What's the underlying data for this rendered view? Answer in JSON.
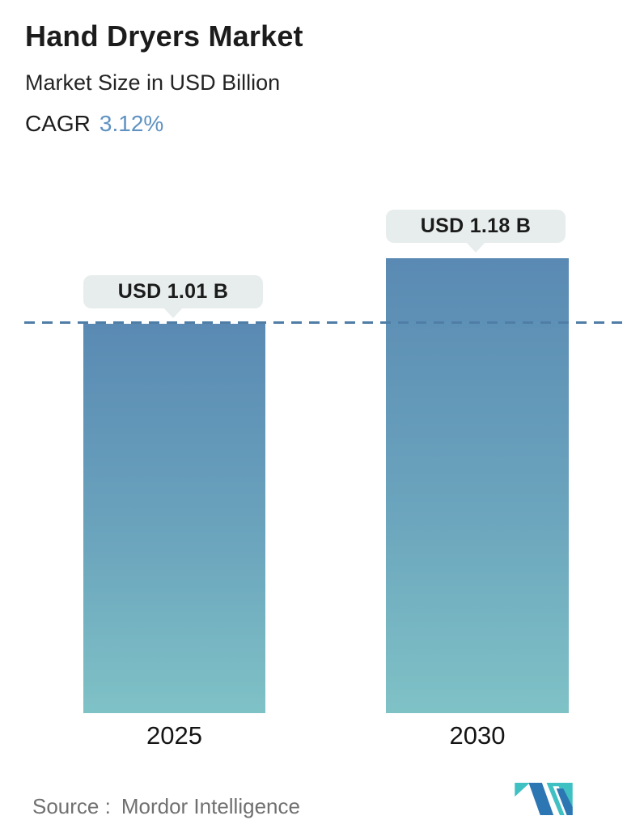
{
  "header": {
    "title": "Hand Dryers Market",
    "subtitle": "Market Size in USD Billion",
    "cagr_label": "CAGR",
    "cagr_value": "3.12%"
  },
  "chart_data": {
    "type": "bar",
    "categories": [
      "2025",
      "2030"
    ],
    "values": [
      1.01,
      1.18
    ],
    "series": [
      {
        "name": "Market Size",
        "values": [
          1.01,
          1.18
        ]
      }
    ],
    "value_labels": [
      "USD 1.01 B",
      "USD 1.18 B"
    ],
    "unit": "USD Billion",
    "title": "Hand Dryers Market",
    "xlabel": "",
    "ylabel": "Market Size in USD Billion",
    "ylim": [
      0,
      1.18
    ],
    "cagr": "3.12%",
    "baseline_value": 1.01,
    "baseline_style": "dashed",
    "grid": false,
    "legend_position": "none",
    "colors": {
      "bar_gradient_top": "#5a8ab3",
      "bar_gradient_bottom": "#7fc2c6",
      "baseline_dash": "#4f7da6",
      "label_bubble_bg": "#e7edec",
      "cagr_accent": "#5f92c1"
    }
  },
  "footer": {
    "source_label": "Source :",
    "source_value": "Mordor Intelligence",
    "logo": "mordor-intelligence-logo",
    "logo_colors": {
      "blue": "#2d76b4",
      "teal": "#3fc0c3"
    }
  }
}
